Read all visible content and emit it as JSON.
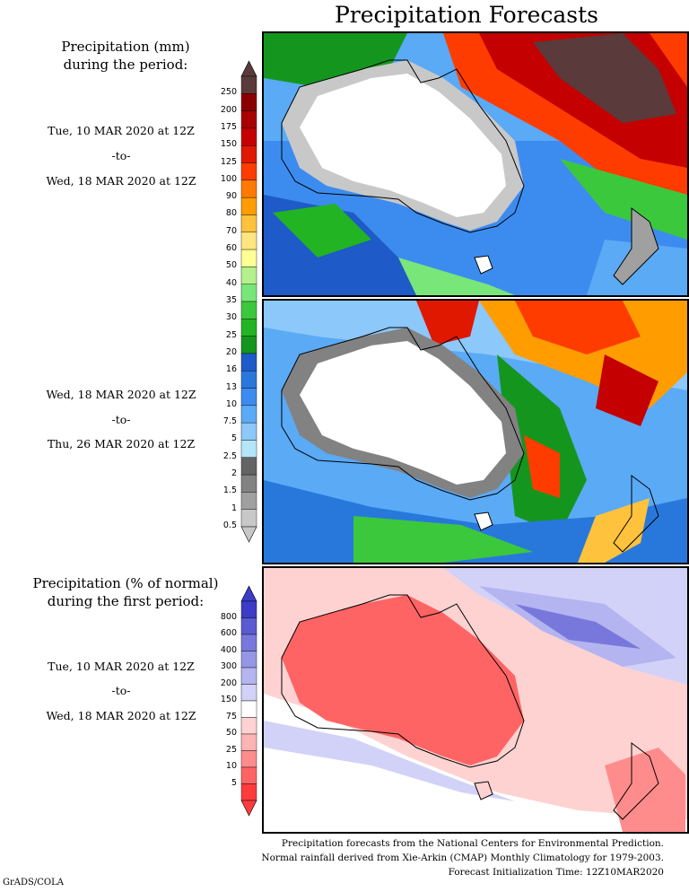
{
  "title": "Precipitation Forecasts",
  "section1": {
    "heading_line1": "Precipitation (mm)",
    "heading_line2": "during the period:",
    "period1": {
      "start": "Tue, 10 MAR 2020 at 12Z",
      "sep": "-to-",
      "end": "Wed, 18 MAR 2020 at 12Z"
    },
    "period2": {
      "start": "Wed, 18 MAR 2020 at 12Z",
      "sep": "-to-",
      "end": "Thu, 26 MAR 2020 at 12Z"
    },
    "colorbar": {
      "labels": [
        "250",
        "200",
        "175",
        "150",
        "125",
        "100",
        "90",
        "80",
        "70",
        "60",
        "50",
        "40",
        "35",
        "30",
        "25",
        "20",
        "16",
        "13",
        "10",
        "7.5",
        "5",
        "2.5",
        "2",
        "1.5",
        "1",
        "0.5"
      ],
      "colors": [
        "#5a3a3a",
        "#8b0000",
        "#a80000",
        "#c40000",
        "#e01800",
        "#ff3c00",
        "#ff7a00",
        "#ff9d00",
        "#ffc23c",
        "#ffe680",
        "#ffff96",
        "#b4f08c",
        "#78e678",
        "#3cc83c",
        "#22b422",
        "#14961e",
        "#1e5ac8",
        "#2878dc",
        "#3c8cf0",
        "#5aaaf5",
        "#8cc8fa",
        "#b4e6fa",
        "#646464",
        "#828282",
        "#a0a0a0",
        "#c8c8c8"
      ]
    }
  },
  "section2": {
    "heading_line1": "Precipitation (% of normal)",
    "heading_line2": "during the first period:",
    "period": {
      "start": "Tue, 10 MAR 2020 at 12Z",
      "sep": "-to-",
      "end": "Wed, 18 MAR 2020 at 12Z"
    },
    "colorbar": {
      "labels": [
        "800",
        "600",
        "400",
        "300",
        "200",
        "150",
        "75",
        "50",
        "25",
        "10",
        "5"
      ],
      "colors": [
        "#3c3cc8",
        "#5a5ad2",
        "#7878dc",
        "#9696e6",
        "#b4b4f0",
        "#d2d2f8",
        "#ffffff",
        "#ffd2d2",
        "#ffb4b4",
        "#ff8c8c",
        "#ff6464",
        "#ff3c3c"
      ]
    }
  },
  "footer": {
    "line1": "Precipitation forecasts from the National Centers for Environmental Prediction.",
    "line2": "Normal rainfall derived from Xie-Arkin (CMAP) Monthly Climatology for 1979-2003.",
    "line3": "Forecast Initialization Time: 12Z10MAR2020"
  },
  "credit": "GrADS/COLA"
}
